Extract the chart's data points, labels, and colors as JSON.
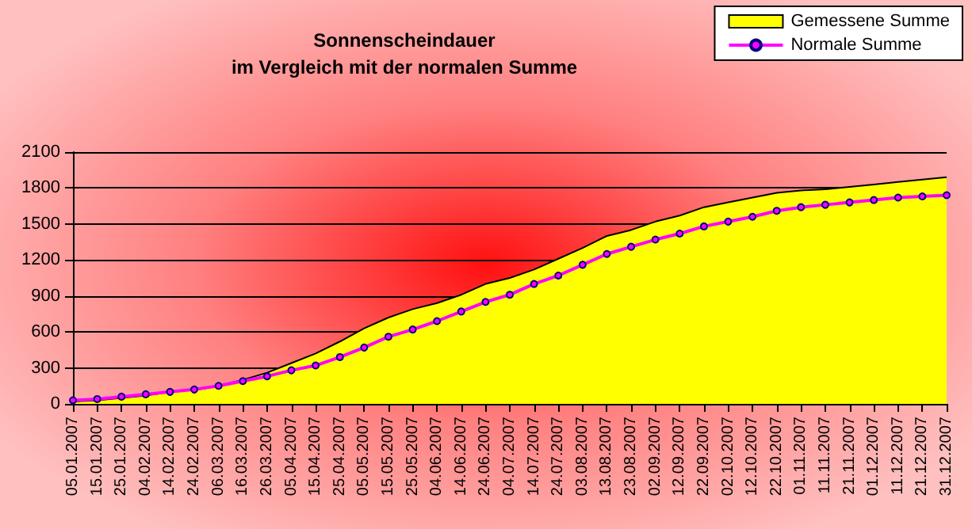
{
  "chart_data": {
    "type": "area",
    "title": "Sonnenscheindauer\nim Vergleich mit der normalen Summe",
    "categories": [
      "05.01.2007",
      "15.01.2007",
      "25.01.2007",
      "04.02.2007",
      "14.02.2007",
      "24.02.2007",
      "06.03.2007",
      "16.03.2007",
      "26.03.2007",
      "05.04.2007",
      "15.04.2007",
      "25.04.2007",
      "05.05.2007",
      "15.05.2007",
      "25.05.2007",
      "04.06.2007",
      "14.06.2007",
      "24.06.2007",
      "04.07.2007",
      "14.07.2007",
      "24.07.2007",
      "03.08.2007",
      "13.08.2007",
      "23.08.2007",
      "02.09.2007",
      "12.09.2007",
      "22.09.2007",
      "02.10.2007",
      "12.10.2007",
      "22.10.2007",
      "01.11.2007",
      "11.11.2007",
      "21.11.2007",
      "01.12.2007",
      "11.12.2007",
      "21.12.2007",
      "31.12.2007"
    ],
    "series": [
      {
        "name": "Gemessene Summe",
        "color": "#ffff00",
        "values": [
          20,
          30,
          50,
          70,
          100,
          120,
          150,
          200,
          260,
          340,
          420,
          520,
          630,
          720,
          790,
          840,
          910,
          1000,
          1050,
          1120,
          1210,
          1300,
          1400,
          1450,
          1520,
          1570,
          1640,
          1680,
          1720,
          1760,
          1780,
          1790,
          1810,
          1830,
          1850,
          1870,
          1890
        ]
      },
      {
        "name": "Normale Summe",
        "type": "line",
        "color": "#ff00ff",
        "marker": "circle",
        "values": [
          30,
          40,
          60,
          80,
          100,
          120,
          150,
          190,
          230,
          280,
          320,
          390,
          470,
          560,
          620,
          690,
          770,
          850,
          910,
          1000,
          1070,
          1160,
          1250,
          1310,
          1370,
          1420,
          1480,
          1520,
          1560,
          1610,
          1640,
          1660,
          1680,
          1700,
          1720,
          1730,
          1740
        ]
      }
    ],
    "ylim": [
      0,
      2100
    ],
    "yticks": [
      0,
      300,
      600,
      900,
      1200,
      1500,
      1800,
      2100
    ],
    "grid": "y",
    "legend": "top right"
  }
}
